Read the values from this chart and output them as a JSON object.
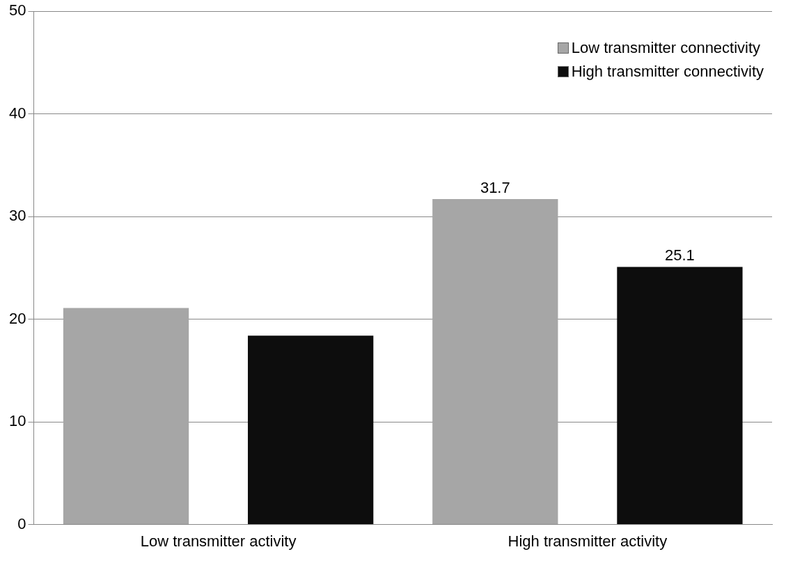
{
  "chart_data": {
    "type": "bar",
    "categories": [
      "Low transmitter activity",
      "High transmitter activity"
    ],
    "series": [
      {
        "name": "Low transmitter connectivity",
        "color": "#a6a6a6",
        "values": [
          21.1,
          31.7
        ],
        "value_labels": [
          null,
          "31.7"
        ]
      },
      {
        "name": "High transmitter connectivity",
        "color": "#0d0d0d",
        "values": [
          18.4,
          25.1
        ],
        "value_labels": [
          null,
          "25.1"
        ]
      }
    ],
    "ylim": [
      0,
      50
    ],
    "yticks": [
      0,
      10,
      20,
      30,
      40,
      50
    ],
    "grid": "y",
    "legend": "top right"
  }
}
